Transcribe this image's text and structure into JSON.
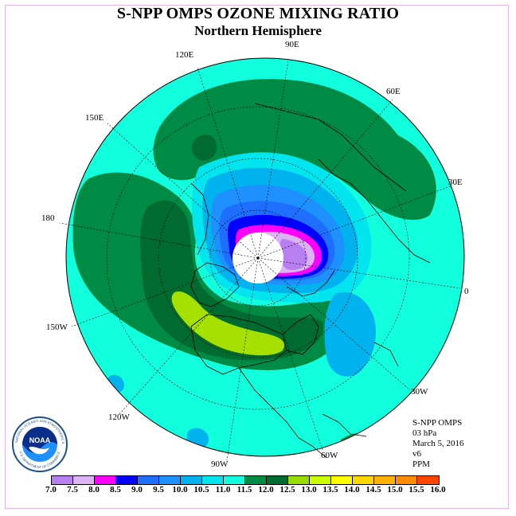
{
  "title": "S-NPP OMPS OZONE MIXING RATIO",
  "subtitle": "Northern Hemisphere",
  "longitude_labels": [
    "90E",
    "60E",
    "30E",
    "0",
    "30W",
    "60W",
    "90W",
    "120W",
    "150W",
    "180",
    "150E",
    "120E"
  ],
  "info": {
    "product": "S-NPP OMPS",
    "level": "03 hPa",
    "date": "March 5, 2016",
    "version": "v6",
    "units": "PPM"
  },
  "logo": {
    "text": "NOAA",
    "ring_text": "NATIONAL OCEANIC AND ATMOSPHERIC ADMINISTRATION",
    "ring_text_bottom": "U.S. DEPARTMENT OF COMMERCE"
  },
  "colorbar": {
    "colors": [
      "#b77ff0",
      "#dcb4f5",
      "#ff00ff",
      "#0000ff",
      "#1e6fff",
      "#1e90ff",
      "#00b2ee",
      "#00e5ee",
      "#11ffdd",
      "#008b45",
      "#006b2e",
      "#99dd00",
      "#ccff00",
      "#ffff00",
      "#ffd700",
      "#ffb000",
      "#ff8c00",
      "#ff4500",
      "#ff0000",
      "#8b4513"
    ],
    "tick_labels": [
      "7.0",
      "7.5",
      "8.0",
      "8.5",
      "9.0",
      "9.5",
      "10.0",
      "10.5",
      "11.0",
      "11.5",
      "12.0",
      "12.5",
      "13.0",
      "13.5",
      "14.0",
      "14.5",
      "15.0",
      "15.5",
      "16.0"
    ]
  }
}
